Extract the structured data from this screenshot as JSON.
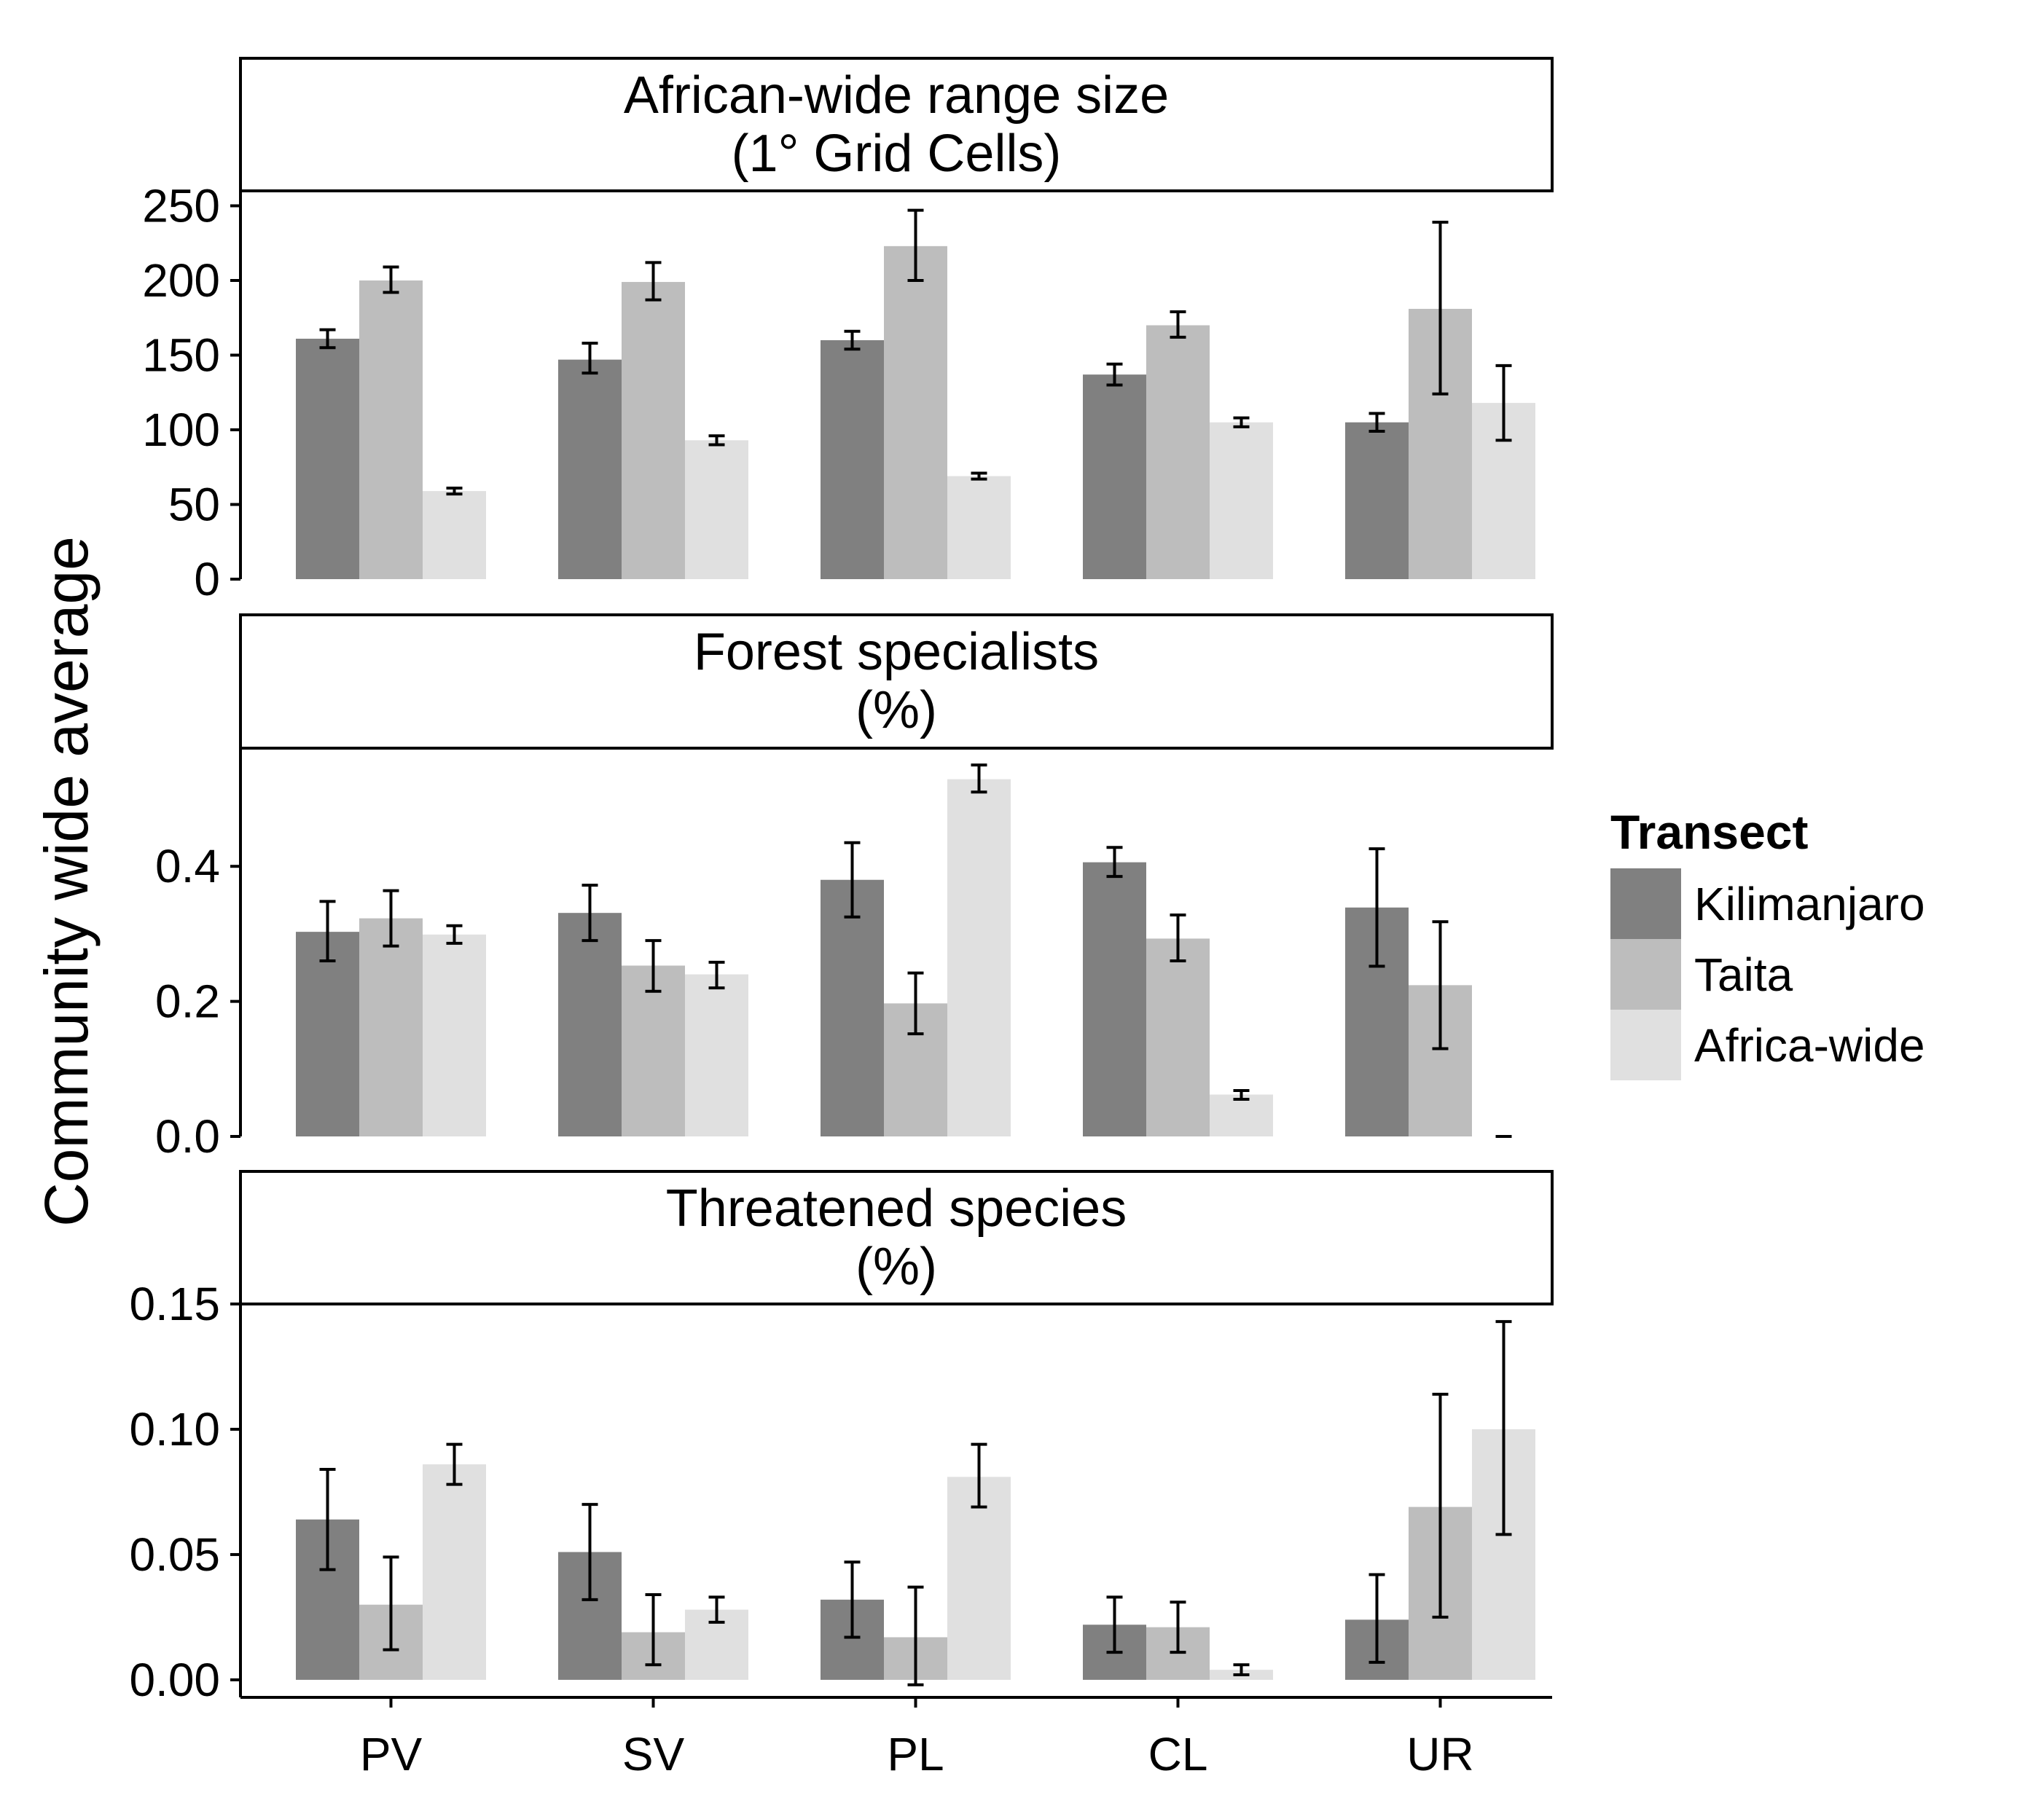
{
  "chart_data": {
    "type": "bar",
    "ylabel": "Community wide average",
    "xlabel": "",
    "categories": [
      "PV",
      "SV",
      "PL",
      "CL",
      "UR"
    ],
    "legend": {
      "title": "Transect",
      "placement": "right",
      "items": [
        {
          "name": "Kilimanjaro",
          "color": "#808080"
        },
        {
          "name": "Taita",
          "color": "#bdbdbd"
        },
        {
          "name": "Africa-wide",
          "color": "#e0e0e0"
        }
      ]
    },
    "colors": {
      "kilimanjaro": "#808080",
      "taita": "#bdbdbd",
      "africa_wide": "#e0e0e0"
    },
    "grid": false,
    "panels": [
      {
        "title_line1": "African-wide range size",
        "title_line2": "(1° Grid Cells)",
        "ylim": [
          0,
          260
        ],
        "yticks": [
          "0",
          "50",
          "100",
          "150",
          "200",
          "250"
        ],
        "ytick_values": [
          0,
          50,
          100,
          150,
          200,
          250
        ],
        "series": [
          {
            "name": "Kilimanjaro",
            "values": [
              161,
              147,
              160,
              137,
              105
            ],
            "errors": [
              [
                155,
                167
              ],
              [
                138,
                158
              ],
              [
                154,
                166
              ],
              [
                130,
                144
              ],
              [
                99,
                111
              ]
            ]
          },
          {
            "name": "Taita",
            "values": [
              200,
              199,
              223,
              170,
              181
            ],
            "errors": [
              [
                192,
                209
              ],
              [
                187,
                212
              ],
              [
                200,
                247
              ],
              [
                162,
                179
              ],
              [
                124,
                239
              ]
            ]
          },
          {
            "name": "Africa-wide",
            "values": [
              59,
              93,
              69,
              105,
              118
            ],
            "errors": [
              [
                57,
                61
              ],
              [
                90,
                96
              ],
              [
                67,
                71
              ],
              [
                102,
                108
              ],
              [
                93,
                143
              ]
            ]
          }
        ]
      },
      {
        "title_line1": "Forest specialists",
        "title_line2": "(%)",
        "ylim": [
          0,
          0.575
        ],
        "yticks": [
          "0.0",
          "0.2",
          "0.4"
        ],
        "ytick_values": [
          0,
          0.2,
          0.4
        ],
        "series": [
          {
            "name": "Kilimanjaro",
            "values": [
              0.303,
              0.331,
              0.38,
              0.406,
              0.339
            ],
            "errors": [
              [
                0.26,
                0.348
              ],
              [
                0.29,
                0.372
              ],
              [
                0.325,
                0.435
              ],
              [
                0.385,
                0.428
              ],
              [
                0.252,
                0.426
              ]
            ]
          },
          {
            "name": "Taita",
            "values": [
              0.323,
              0.253,
              0.197,
              0.293,
              0.224
            ],
            "errors": [
              [
                0.282,
                0.364
              ],
              [
                0.215,
                0.29
              ],
              [
                0.152,
                0.242
              ],
              [
                0.26,
                0.328
              ],
              [
                0.13,
                0.318
              ]
            ]
          },
          {
            "name": "Africa-wide",
            "values": [
              0.299,
              0.24,
              0.529,
              0.062,
              0.0
            ],
            "errors": [
              [
                0.286,
                0.312
              ],
              [
                0.22,
                0.258
              ],
              [
                0.51,
                0.55
              ],
              [
                0.055,
                0.068
              ],
              [
                0.0,
                0.0
              ]
            ]
          }
        ]
      },
      {
        "title_line1": "Threatened species",
        "title_line2": "(%)",
        "ylim": [
          -0.007,
          0.15
        ],
        "yticks": [
          "0.00",
          "0.05",
          "0.10",
          "0.15"
        ],
        "ytick_values": [
          0,
          0.05,
          0.1,
          0.15
        ],
        "series": [
          {
            "name": "Kilimanjaro",
            "values": [
              0.064,
              0.051,
              0.032,
              0.022,
              0.024
            ],
            "errors": [
              [
                0.044,
                0.084
              ],
              [
                0.032,
                0.07
              ],
              [
                0.017,
                0.047
              ],
              [
                0.011,
                0.033
              ],
              [
                0.007,
                0.042
              ]
            ]
          },
          {
            "name": "Taita",
            "values": [
              0.03,
              0.019,
              0.017,
              0.021,
              0.069
            ],
            "errors": [
              [
                0.012,
                0.049
              ],
              [
                0.006,
                0.034
              ],
              [
                -0.002,
                0.037
              ],
              [
                0.011,
                0.031
              ],
              [
                0.025,
                0.114
              ]
            ]
          },
          {
            "name": "Africa-wide",
            "values": [
              0.086,
              0.028,
              0.081,
              0.004,
              0.1
            ],
            "errors": [
              [
                0.078,
                0.094
              ],
              [
                0.023,
                0.033
              ],
              [
                0.069,
                0.094
              ],
              [
                0.002,
                0.006
              ],
              [
                0.058,
                0.143
              ]
            ]
          }
        ]
      }
    ]
  }
}
